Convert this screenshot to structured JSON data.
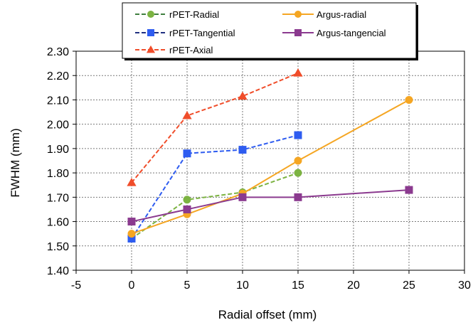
{
  "chart_data": {
    "type": "line",
    "xlabel": "Radial offset (mm)",
    "ylabel": "FWHM (mm)",
    "xlim": [
      -5,
      30
    ],
    "ylim": [
      1.4,
      2.3
    ],
    "x_ticks": [
      "-5",
      "0",
      "5",
      "10",
      "15",
      "20",
      "25",
      "30"
    ],
    "y_ticks": [
      "1.40",
      "1.50",
      "1.60",
      "1.70",
      "1.80",
      "1.90",
      "2.00",
      "2.10",
      "2.20",
      "2.30"
    ],
    "grid": true,
    "legend_position": "top",
    "series": [
      {
        "name": "rPET-Radial",
        "color": "#7cb342",
        "dash": true,
        "marker": "circle",
        "x": [
          0,
          5,
          10,
          15
        ],
        "y": [
          1.53,
          1.69,
          1.72,
          1.8
        ]
      },
      {
        "name": "rPET-Tangential",
        "color": "#2e5cf0",
        "dash": true,
        "marker": "square",
        "x": [
          0,
          5,
          10,
          15
        ],
        "y": [
          1.53,
          1.88,
          1.895,
          1.955
        ]
      },
      {
        "name": "rPET-Axial",
        "color": "#f04d2a",
        "dash": true,
        "marker": "triangle",
        "x": [
          0,
          5,
          10,
          15
        ],
        "y": [
          1.76,
          2.035,
          2.115,
          2.21
        ]
      },
      {
        "name": "Argus-radial",
        "color": "#f5a623",
        "dash": false,
        "marker": "circle",
        "x": [
          0,
          5,
          10,
          15,
          25
        ],
        "y": [
          1.55,
          1.63,
          1.715,
          1.85,
          2.1
        ]
      },
      {
        "name": "Argus-tangencial",
        "color": "#8b3a8f",
        "dash": false,
        "marker": "square",
        "x": [
          0,
          5,
          10,
          15,
          25
        ],
        "y": [
          1.6,
          1.65,
          1.7,
          1.7,
          1.73
        ]
      }
    ],
    "legend_dash_colors": {
      "rPET-Radial": "#3f7f3f",
      "rPET-Tangential": "#1f2f80",
      "rPET-Axial": "#f04d2a"
    }
  }
}
